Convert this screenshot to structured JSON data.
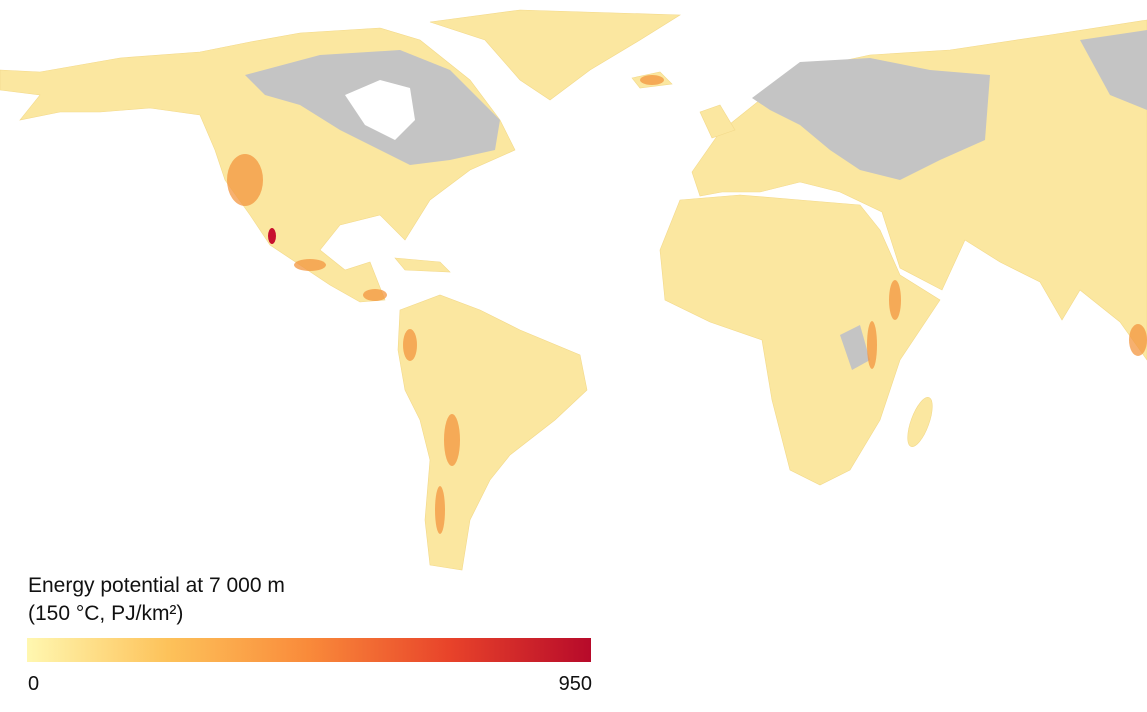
{
  "legend": {
    "title": [
      "Energy potential at 7 000 m",
      "(150 °C, PJ/km²)"
    ],
    "min": 0,
    "max": 950,
    "colors": [
      "#fff7b0",
      "#fdc25a",
      "#f98a3a",
      "#e8432a",
      "#b70a2a"
    ]
  }
}
